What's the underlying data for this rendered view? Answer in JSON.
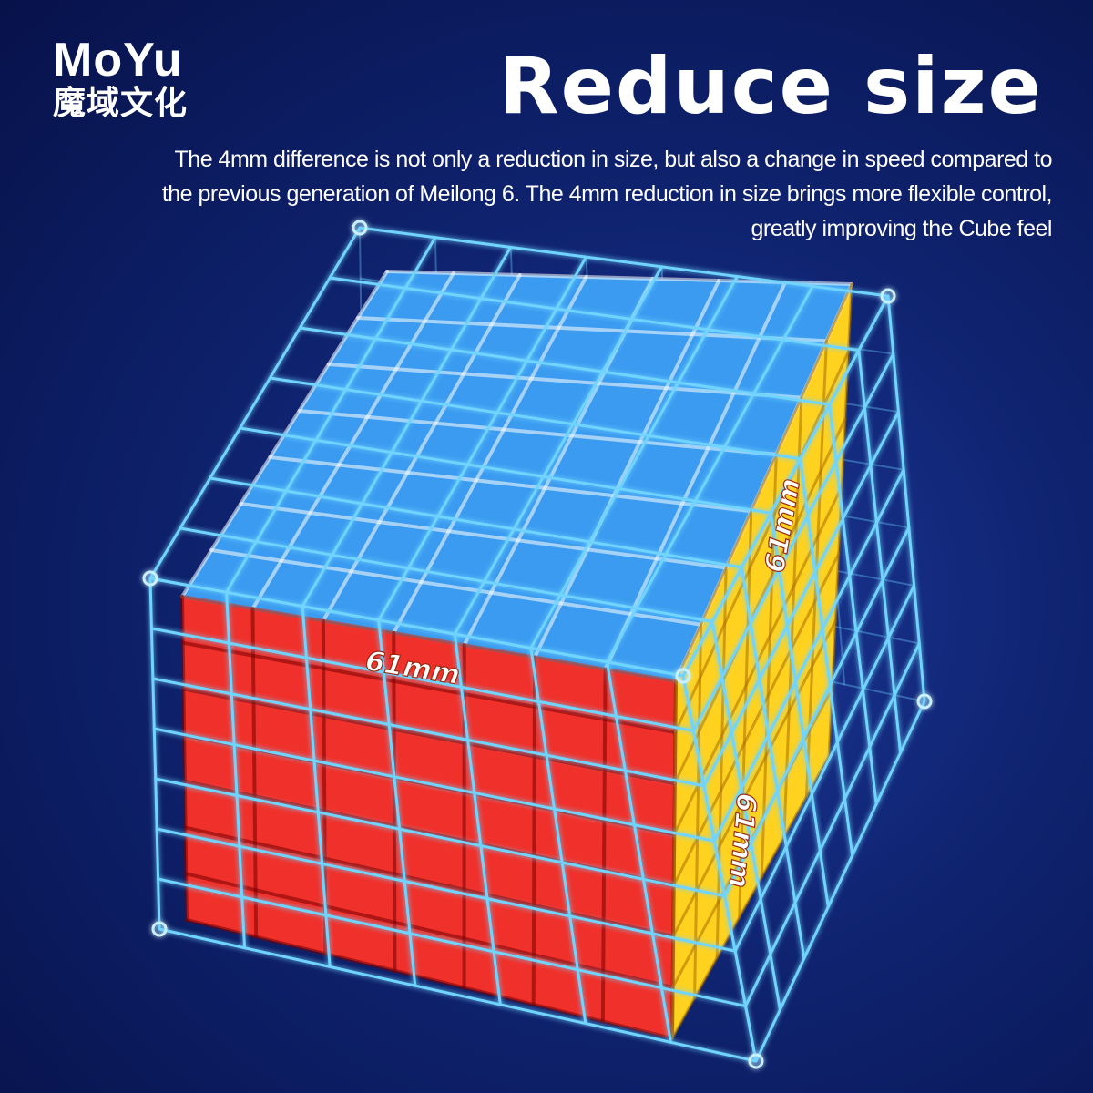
{
  "logo": {
    "name_en": "MoYu",
    "name_cn": "魔域文化"
  },
  "headline": "Reduce size",
  "description": {
    "line1": "The 4mm difference is not only a reduction in size, but also a change in speed compared to",
    "line2": "the previous generation of Meilong 6. The 4mm reduction in size brings more flexible control,",
    "line3": "greatly improving the Cube feel"
  },
  "cube": {
    "grid": 7,
    "labels": {
      "front": "61mm",
      "right_top": "61mm",
      "right_edge": "61mm"
    },
    "colors": {
      "top": "#3a9bf0",
      "front": "#f0302a",
      "right": "#ffd21f",
      "cage": "#6fd4ff"
    }
  }
}
